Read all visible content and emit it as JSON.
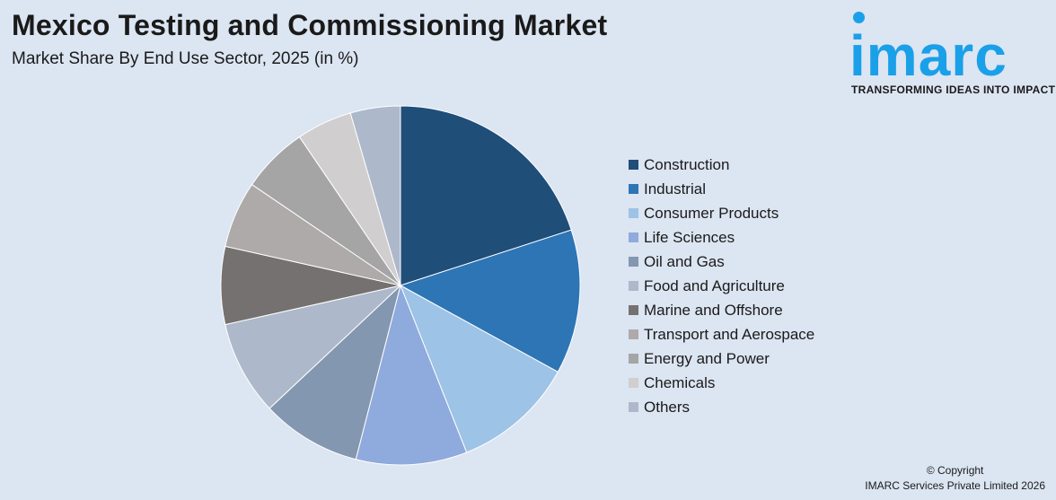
{
  "title": "Mexico Testing and Commissioning Market",
  "subtitle": "Market Share By End Use Sector, 2025 (in %)",
  "logo": {
    "word": "imarc",
    "tagline": "TRANSFORMING IDEAS INTO IMPACT",
    "color": "#1aa0e8"
  },
  "copyright": {
    "line1": "© Copyright",
    "line2": "IMARC Services Private Limited 2026"
  },
  "chart_data": {
    "type": "pie",
    "title": "Mexico Testing and Commissioning Market",
    "subtitle": "Market Share By End Use Sector, 2025 (in %)",
    "legend_position": "right",
    "slices": [
      {
        "label": "Construction",
        "value": 20.0,
        "color": "#1f4e79"
      },
      {
        "label": "Industrial",
        "value": 13.0,
        "color": "#2e75b6"
      },
      {
        "label": "Consumer Products",
        "value": 11.0,
        "color": "#9dc3e6"
      },
      {
        "label": "Life Sciences",
        "value": 10.0,
        "color": "#8faadc"
      },
      {
        "label": "Oil and Gas",
        "value": 9.0,
        "color": "#8497b0"
      },
      {
        "label": "Food and Agriculture",
        "value": 8.5,
        "color": "#adb9ca"
      },
      {
        "label": "Marine and Offshore",
        "value": 7.0,
        "color": "#767171"
      },
      {
        "label": "Transport and Aerospace",
        "value": 6.0,
        "color": "#aeaaaa"
      },
      {
        "label": "Energy and Power",
        "value": 6.0,
        "color": "#a5a5a5"
      },
      {
        "label": "Chemicals",
        "value": 5.0,
        "color": "#d0cece"
      },
      {
        "label": "Others",
        "value": 4.5,
        "color": "#adb9ca"
      }
    ]
  }
}
